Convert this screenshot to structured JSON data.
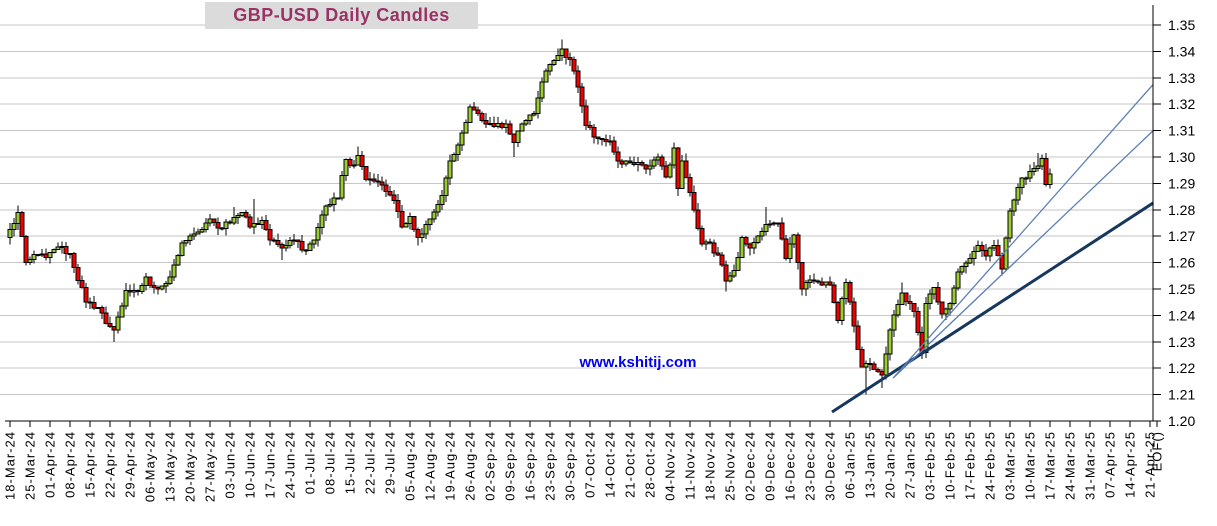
{
  "title": "GBP-USD Daily Candles",
  "watermark": "www.kshitij.com",
  "colors": {
    "up_candle": "#9ACD32",
    "down_candle": "#EE0000",
    "candle_border": "#000000",
    "wick": "#000000",
    "grid": "#C6C6C6",
    "axis": "#000000",
    "label_text": "#000000",
    "title_text": "#993366",
    "title_bg": "#DBDBDB",
    "watermark_text": "#0000EE",
    "trend_thick": "#17375E",
    "trend_thin": "#5B7FB5"
  },
  "chart_data": {
    "type": "candlestick",
    "title": "GBP-USD Daily Candles",
    "instrument": "GBP-USD",
    "interval": "Daily",
    "y_axis": {
      "min": 1.2,
      "max": 1.35,
      "step": 0.01,
      "labels": [
        "1.35",
        "1.34",
        "1.33",
        "1.32",
        "1.31",
        "1.30",
        "1.29",
        "1.28",
        "1.27",
        "1.26",
        "1.25",
        "1.24",
        "1.23",
        "1.22",
        "1.21",
        "1.20"
      ]
    },
    "x_axis": {
      "candles_per_label": 5,
      "labels": [
        "18-Mar-24",
        "25-Mar-24",
        "01-Apr-24",
        "08-Apr-24",
        "15-Apr-24",
        "22-Apr-24",
        "29-Apr-24",
        "06-May-24",
        "13-May-24",
        "20-May-24",
        "27-May-24",
        "03-Jun-24",
        "10-Jun-24",
        "17-Jun-24",
        "24-Jun-24",
        "01-Jul-24",
        "08-Jul-24",
        "15-Jul-24",
        "22-Jul-24",
        "29-Jul-24",
        "05-Aug-24",
        "12-Aug-24",
        "19-Aug-24",
        "26-Aug-24",
        "02-Sep-24",
        "09-Sep-24",
        "16-Sep-24",
        "23-Sep-24",
        "30-Sep-24",
        "07-Oct-24",
        "14-Oct-24",
        "21-Oct-24",
        "28-Oct-24",
        "04-Nov-24",
        "11-Nov-24",
        "18-Nov-24",
        "25-Nov-24",
        "02-Dec-24",
        "09-Dec-24",
        "16-Dec-24",
        "23-Dec-24",
        "30-Dec-24",
        "06-Jan-25",
        "13-Jan-25",
        "20-Jan-25",
        "27-Jan-25",
        "03-Feb-25",
        "10-Feb-25",
        "17-Feb-25",
        "24-Feb-25",
        "03-Mar-25",
        "10-Mar-25",
        "17-Mar-25",
        "24-Mar-25",
        "31-Mar-25",
        "07-Apr-25",
        "14-Apr-25",
        "21-Apr-25",
        "EOF()"
      ]
    },
    "first_open": 1.2695,
    "price_path_anchors": [
      [
        0,
        1.2725
      ],
      [
        2,
        1.279
      ],
      [
        4,
        1.26
      ],
      [
        7,
        1.263
      ],
      [
        9,
        1.262
      ],
      [
        12,
        1.266
      ],
      [
        15,
        1.2635
      ],
      [
        19,
        1.245
      ],
      [
        22,
        1.243
      ],
      [
        24,
        1.237
      ],
      [
        26,
        1.2345
      ],
      [
        29,
        1.2495
      ],
      [
        32,
        1.249
      ],
      [
        34,
        1.2545
      ],
      [
        36,
        1.2505
      ],
      [
        39,
        1.252
      ],
      [
        41,
        1.259
      ],
      [
        43,
        1.2675
      ],
      [
        47,
        1.2715
      ],
      [
        50,
        1.2765
      ],
      [
        53,
        1.273
      ],
      [
        56,
        1.277
      ],
      [
        58,
        1.279
      ],
      [
        60,
        1.2735
      ],
      [
        63,
        1.276
      ],
      [
        65,
        1.2685
      ],
      [
        68,
        1.2655
      ],
      [
        71,
        1.2685
      ],
      [
        74,
        1.2645
      ],
      [
        76,
        1.2685
      ],
      [
        79,
        1.2815
      ],
      [
        82,
        1.2845
      ],
      [
        84,
        1.299
      ],
      [
        86,
        1.297
      ],
      [
        87,
        1.3005
      ],
      [
        89,
        1.2915
      ],
      [
        92,
        1.2905
      ],
      [
        94,
        1.287
      ],
      [
        96,
        1.2835
      ],
      [
        98,
        1.2735
      ],
      [
        100,
        1.2775
      ],
      [
        102,
        1.2695
      ],
      [
        105,
        1.2765
      ],
      [
        108,
        1.2855
      ],
      [
        110,
        1.2985
      ],
      [
        113,
        1.309
      ],
      [
        115,
        1.319
      ],
      [
        117,
        1.3165
      ],
      [
        119,
        1.3125
      ],
      [
        121,
        1.3115
      ],
      [
        124,
        1.3125
      ],
      [
        126,
        1.3055
      ],
      [
        128,
        1.3125
      ],
      [
        131,
        1.3165
      ],
      [
        133,
        1.3285
      ],
      [
        135,
        1.335
      ],
      [
        138,
        1.341
      ],
      [
        140,
        1.337
      ],
      [
        142,
        1.3265
      ],
      [
        144,
        1.312
      ],
      [
        147,
        1.307
      ],
      [
        150,
        1.306
      ],
      [
        152,
        1.2985
      ],
      [
        155,
        1.298
      ],
      [
        158,
        1.297
      ],
      [
        160,
        1.2965
      ],
      [
        162,
        1.3
      ],
      [
        164,
        1.2925
      ],
      [
        166,
        1.3035
      ],
      [
        167,
        1.288
      ],
      [
        168,
        1.2985
      ],
      [
        170,
        1.2865
      ],
      [
        173,
        1.267
      ],
      [
        175,
        1.2675
      ],
      [
        178,
        1.259
      ],
      [
        179,
        1.253
      ],
      [
        181,
        1.257
      ],
      [
        183,
        1.2695
      ],
      [
        185,
        1.2655
      ],
      [
        187,
        1.27
      ],
      [
        189,
        1.2745
      ],
      [
        192,
        1.275
      ],
      [
        194,
        1.2615
      ],
      [
        196,
        1.2705
      ],
      [
        198,
        1.25
      ],
      [
        200,
        1.2535
      ],
      [
        203,
        1.2515
      ],
      [
        205,
        1.2515
      ],
      [
        207,
        1.238
      ],
      [
        209,
        1.2525
      ],
      [
        211,
        1.236
      ],
      [
        213,
        1.2205
      ],
      [
        215,
        1.2215
      ],
      [
        218,
        1.2175
      ],
      [
        220,
        1.2345
      ],
      [
        223,
        1.2485
      ],
      [
        225,
        1.2445
      ],
      [
        226,
        1.2415
      ],
      [
        228,
        1.226
      ],
      [
        229,
        1.2445
      ],
      [
        231,
        1.2505
      ],
      [
        233,
        1.2405
      ],
      [
        235,
        1.2445
      ],
      [
        237,
        1.2565
      ],
      [
        240,
        1.2615
      ],
      [
        242,
        1.2665
      ],
      [
        244,
        1.2625
      ],
      [
        246,
        1.2665
      ],
      [
        248,
        1.2575
      ],
      [
        250,
        1.2795
      ],
      [
        252,
        1.2885
      ],
      [
        253,
        1.292
      ],
      [
        255,
        1.2945
      ],
      [
        257,
        1.2965
      ],
      [
        258,
        1.2995
      ],
      [
        259,
        1.2895
      ],
      [
        260,
        1.2935
      ]
    ],
    "wick_lows": [
      [
        26,
        1.23
      ],
      [
        37,
        1.248
      ],
      [
        68,
        1.261
      ],
      [
        102,
        1.2665
      ],
      [
        126,
        1.3
      ],
      [
        179,
        1.249
      ],
      [
        198,
        1.2475
      ],
      [
        214,
        1.21
      ],
      [
        218,
        1.2125
      ],
      [
        229,
        1.2249
      ]
    ],
    "wick_highs": [
      [
        2,
        1.2803
      ],
      [
        56,
        1.281
      ],
      [
        61,
        1.284
      ],
      [
        87,
        1.304
      ],
      [
        138,
        1.3445
      ],
      [
        166,
        1.3055
      ],
      [
        189,
        1.281
      ],
      [
        223,
        1.2525
      ],
      [
        257,
        1.3015
      ]
    ],
    "trend_lines": [
      {
        "name": "support-trendline-thick",
        "start_day": 205.5,
        "start_price": 1.2034,
        "end_day": 285.8,
        "end_price": 1.2826,
        "weight": "thick"
      },
      {
        "name": "channel-line-upper",
        "start_day": 220.8,
        "start_price": 1.2163,
        "end_day": 285.8,
        "end_price": 1.3275,
        "weight": "thin"
      },
      {
        "name": "channel-line-lower",
        "start_day": 220.8,
        "start_price": 1.2163,
        "end_day": 285.8,
        "end_price": 1.31,
        "weight": "thin"
      }
    ]
  }
}
